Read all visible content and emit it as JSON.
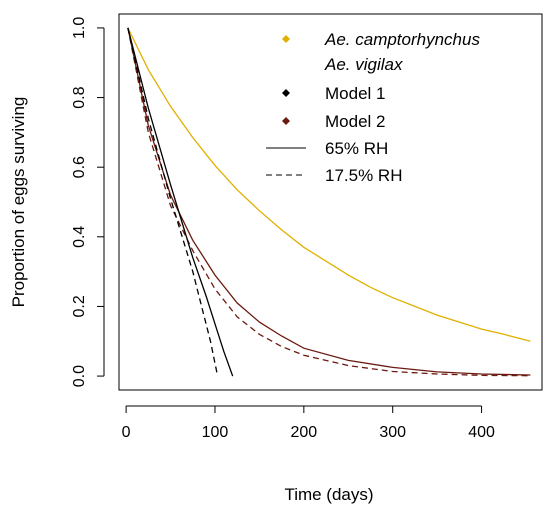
{
  "chart_data": {
    "type": "line",
    "title": "",
    "xlabel": "Time (days)",
    "ylabel": "Proportion of eggs surviving",
    "xlim": [
      -8,
      468
    ],
    "ylim": [
      -0.04,
      1.04
    ],
    "xticks": [
      0,
      100,
      200,
      300,
      400
    ],
    "yticks": [
      0.0,
      0.2,
      0.4,
      0.6,
      0.8,
      1.0
    ],
    "xtick_labels": [
      "0",
      "100",
      "200",
      "300",
      "400"
    ],
    "ytick_labels": [
      "0.0",
      "0.2",
      "0.4",
      "0.6",
      "0.8",
      "1.0"
    ],
    "grid": false,
    "legend": {
      "position": "top-right",
      "species": [
        {
          "label": "Ae. camptorhynchus",
          "color": "#e0b000",
          "marker": "diamond"
        },
        {
          "label": "Ae. vigilax",
          "color": "",
          "marker": "none"
        }
      ],
      "models": [
        {
          "label": "Model 1",
          "color": "#000000",
          "marker": "diamond"
        },
        {
          "label": "Model 2",
          "color": "#6b1a10",
          "marker": "diamond"
        }
      ],
      "humidity": [
        {
          "label": "65% RH",
          "linestyle": "solid"
        },
        {
          "label": "17.5% RH",
          "linestyle": "dashed"
        }
      ]
    },
    "series": [
      {
        "species": "Ae. camptorhynchus",
        "model": "Model 2",
        "humidity": "65% RH",
        "color": "#e0b000",
        "linestyle": "solid",
        "x": [
          2,
          25,
          50,
          75,
          100,
          125,
          150,
          175,
          200,
          225,
          250,
          275,
          300,
          325,
          350,
          375,
          400,
          425,
          455
        ],
        "y": [
          1.0,
          0.88,
          0.775,
          0.685,
          0.605,
          0.535,
          0.475,
          0.42,
          0.37,
          0.33,
          0.29,
          0.255,
          0.225,
          0.2,
          0.175,
          0.155,
          0.135,
          0.12,
          0.1
        ]
      },
      {
        "species": "Ae. vigilax",
        "model": "Model 2",
        "humidity": "65% RH",
        "color": "#6b1a10",
        "linestyle": "solid",
        "x": [
          2,
          25,
          50,
          75,
          100,
          125,
          150,
          175,
          200,
          250,
          300,
          350,
          400,
          455
        ],
        "y": [
          1.0,
          0.72,
          0.52,
          0.39,
          0.29,
          0.21,
          0.155,
          0.115,
          0.08,
          0.045,
          0.025,
          0.012,
          0.006,
          0.003
        ]
      },
      {
        "species": "Ae. vigilax",
        "model": "Model 2",
        "humidity": "17.5% RH",
        "color": "#6b1a10",
        "linestyle": "dashed",
        "x": [
          2,
          25,
          50,
          75,
          100,
          125,
          150,
          175,
          200,
          250,
          300,
          350,
          400,
          455
        ],
        "y": [
          1.0,
          0.7,
          0.49,
          0.36,
          0.25,
          0.17,
          0.12,
          0.085,
          0.06,
          0.03,
          0.013,
          0.006,
          0.002,
          0.001
        ]
      },
      {
        "species": "Ae. vigilax",
        "model": "Model 1",
        "humidity": "65% RH",
        "color": "#000000",
        "linestyle": "solid",
        "x": [
          2,
          25,
          50,
          75,
          90,
          100,
          110,
          120
        ],
        "y": [
          1.0,
          0.77,
          0.55,
          0.34,
          0.23,
          0.15,
          0.07,
          0.0
        ]
      },
      {
        "species": "Ae. vigilax",
        "model": "Model 1",
        "humidity": "17.5% RH",
        "color": "#000000",
        "linestyle": "dashed",
        "x": [
          2,
          25,
          50,
          75,
          85,
          95,
          103
        ],
        "y": [
          1.0,
          0.74,
          0.51,
          0.3,
          0.2,
          0.1,
          0.0
        ]
      }
    ]
  }
}
